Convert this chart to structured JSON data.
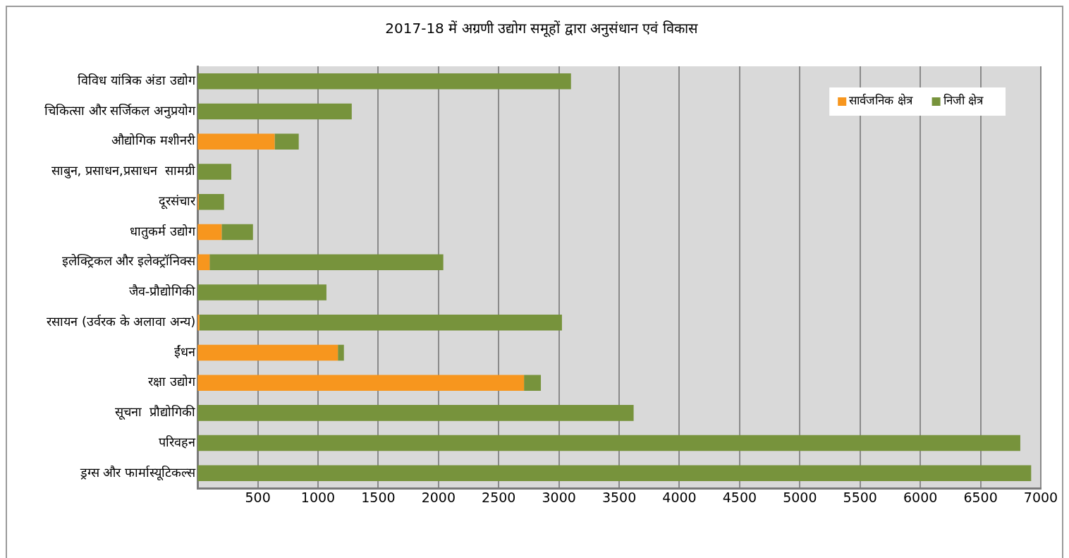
{
  "chart_data": {
    "type": "bar",
    "orientation": "horizontal",
    "stacked": true,
    "title": "2017-18 में अग्रणी उद्योग समूहों द्वारा अनुसंधान एवं विकास",
    "categories": [
      "विविध यांत्रिक अंडा उद्योग",
      "चिकित्सा और सर्जिकल अनुप्रयोग",
      "औद्योगिक मशीनरी",
      "साबुन, प्रसाधन,प्रसाधन  सामग्री",
      "दूरसंचार",
      "धातुकर्म उद्योग",
      "इलेक्ट्रिकल और इलेक्ट्रॉनिक्स",
      "जैव-प्रौद्योगिकी",
      "रसायन (उर्वरक के अलावा अन्य)",
      "ईंधन",
      "रक्षा उद्योग",
      "सूचना  प्रौद्योगिकी",
      "परिवहन",
      "ड्रग्स और फार्मास्यूटिकल्स"
    ],
    "series": [
      {
        "name": "सार्वजनिक क्षेत्र",
        "color": "#f7961e",
        "values": [
          0,
          0,
          640,
          0,
          10,
          200,
          100,
          0,
          15,
          1165,
          2710,
          0,
          0,
          0
        ]
      },
      {
        "name": "निजी क्षेत्र",
        "color": "#77933c",
        "values": [
          3100,
          1280,
          200,
          280,
          210,
          260,
          1940,
          1070,
          3010,
          50,
          140,
          3620,
          6830,
          6920
        ]
      }
    ],
    "xlim": [
      0,
      7000
    ],
    "xticks": [
      500,
      1000,
      1500,
      2000,
      2500,
      3000,
      3500,
      4000,
      4500,
      5000,
      5500,
      6000,
      6500,
      7000
    ],
    "grid": "x",
    "legend": "top right"
  }
}
